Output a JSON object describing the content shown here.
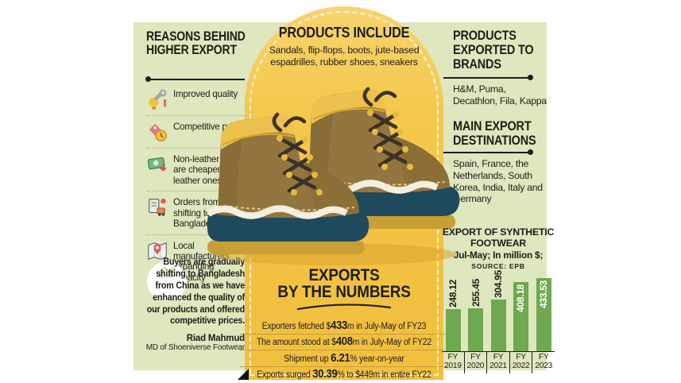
{
  "left": {
    "title": "REASONS BEHIND HIGHER EXPORT",
    "reasons": [
      {
        "icon": "quality-tools-icon",
        "text": "Improved quality"
      },
      {
        "icon": "price-tag-icon",
        "text": "Competitive prices"
      },
      {
        "icon": "banknote-down-icon",
        "text": "Non-leather shoes are cheaper than leather ones"
      },
      {
        "icon": "orders-clipboard-icon",
        "text": "Orders from China shifting to Bangladesh"
      },
      {
        "icon": "map-pin-icon",
        "text": "Local manufacturers expanding capacity"
      }
    ],
    "quote": {
      "text": "Buyers are gradually shifting to Bangladesh from China as we have enhanced the quality of our products and offered competitive prices.",
      "author": "Riad Mahmud",
      "author_title": "MD of Shoeniverse Footwear"
    }
  },
  "center": {
    "products_title": "PRODUCTS INCLUDE",
    "products_text": "Sandals, flip-flops, boots, jute-based espadrilles, rubber shoes, sneakers",
    "exports_title_line1": "EXPORTS",
    "exports_title_line2": "BY THE NUMBERS",
    "stats": [
      {
        "pre": "Exporters fetched $",
        "num": "433",
        "post": "m in July-May of FY23"
      },
      {
        "pre": "The amount stood at $",
        "num": "408",
        "post": "m in July-May of FY22"
      },
      {
        "pre": "Shipment up ",
        "num": "6.21",
        "post": "% year-on-year"
      },
      {
        "pre": "Exports surged ",
        "num": "30.39",
        "post": "% to $449m in entire FY22"
      }
    ]
  },
  "right": {
    "brands_title": "PRODUCTS EXPORTED TO BRANDS",
    "brands_text": "H&M, Puma, Decathlon, Fila, Kappa",
    "destinations_title": "MAIN EXPORT DESTINATIONS",
    "destinations_text": "Spain, France, the Netherlands, South Korea, India, Italy and Germany"
  },
  "chart_data": {
    "type": "bar",
    "title": "EXPORT OF SYNTHETIC FOOTWEAR",
    "subtitle": "Jul-May; In million $;",
    "source": "SOURCE: EPB",
    "categories": [
      "FY 2019",
      "FY 2020",
      "FY 2021",
      "FY 2022",
      "FY 2023"
    ],
    "values": [
      248.12,
      255.45,
      304.95,
      408.18,
      433.53
    ],
    "value_label_inside": [
      false,
      false,
      false,
      true,
      true
    ],
    "bar_color": "#6fa851",
    "ylim": [
      0,
      433.53
    ],
    "grid": false,
    "legend": "none"
  },
  "icons": {
    "quote_glyph": "“"
  },
  "colors": {
    "panel_green": "#dee7bd",
    "arch_yellow": "#f4c345",
    "bar_green": "#6fa851",
    "ink": "#1d1d1b"
  }
}
